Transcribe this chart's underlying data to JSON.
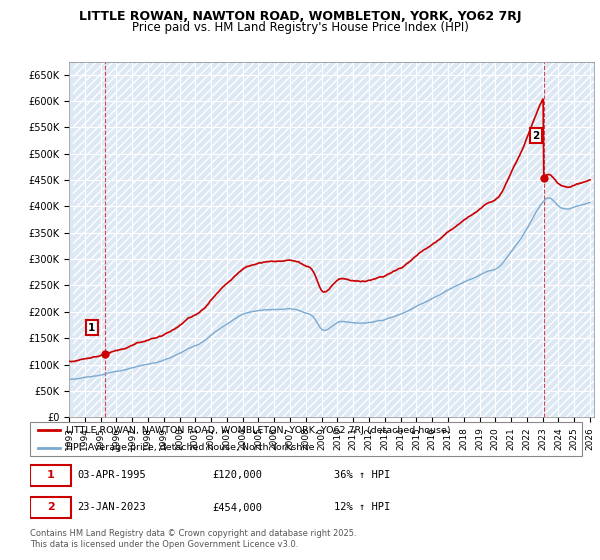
{
  "title": "LITTLE ROWAN, NAWTON ROAD, WOMBLETON, YORK, YO62 7RJ",
  "subtitle": "Price paid vs. HM Land Registry's House Price Index (HPI)",
  "ylabel_ticks": [
    "£0",
    "£50K",
    "£100K",
    "£150K",
    "£200K",
    "£250K",
    "£300K",
    "£350K",
    "£400K",
    "£450K",
    "£500K",
    "£550K",
    "£600K",
    "£650K"
  ],
  "ytick_values": [
    0,
    50000,
    100000,
    150000,
    200000,
    250000,
    300000,
    350000,
    400000,
    450000,
    500000,
    550000,
    600000,
    650000
  ],
  "ylim": [
    0,
    675000
  ],
  "xlim_start": 1993.25,
  "xlim_end": 2026.25,
  "legend_line1": "LITTLE ROWAN, NAWTON ROAD, WOMBLETON, YORK, YO62 7RJ (detached house)",
  "legend_line2": "HPI: Average price, detached house, North Yorkshire",
  "marker1_label": "1",
  "marker1_date": "03-APR-1995",
  "marker1_price": "£120,000",
  "marker1_hpi": "36% ↑ HPI",
  "marker1_x": 1995.25,
  "marker1_y": 120000,
  "marker2_label": "2",
  "marker2_date": "23-JAN-2023",
  "marker2_price": "£454,000",
  "marker2_hpi": "12% ↑ HPI",
  "marker2_x": 2023.07,
  "marker2_y": 454000,
  "sale_color": "#cc0000",
  "hpi_color": "#7aaad0",
  "background_color": "#ffffff",
  "grid_color": "#b0c4de",
  "footer": "Contains HM Land Registry data © Crown copyright and database right 2025.\nThis data is licensed under the Open Government Licence v3.0.",
  "title_fontsize": 9,
  "subtitle_fontsize": 8.5
}
